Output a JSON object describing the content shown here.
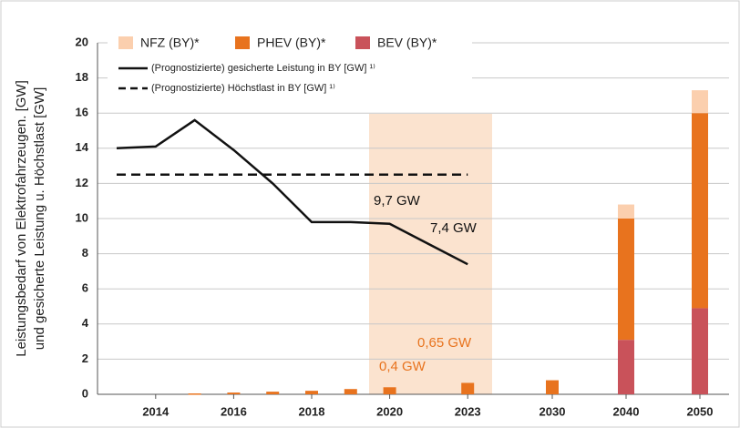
{
  "chart_data": {
    "type": "bar",
    "y_label": [
      "Leistungsbedarf von Elektrofahrzeugen. [GW]",
      "und gesicherte Leistung u. Höchstlast [GW]"
    ],
    "categories": [
      null,
      "2014",
      null,
      "2016",
      null,
      "2018",
      null,
      "2020",
      null,
      "2023",
      "2030",
      "2040",
      "2050"
    ],
    "series": [
      {
        "name": "BEV (BY)*",
        "type": "bar",
        "color": "#c9525a",
        "values": [
          null,
          null,
          null,
          null,
          null,
          null,
          null,
          null,
          null,
          null,
          null,
          3.1,
          4.9
        ]
      },
      {
        "name": "PHEV (BY)*",
        "type": "bar",
        "color": "#e8731e",
        "values": [
          null,
          null,
          0.05,
          0.1,
          0.15,
          0.2,
          0.3,
          0.4,
          null,
          0.65,
          0.8,
          6.9,
          11.1
        ]
      },
      {
        "name": "NFZ (BY)*",
        "type": "bar",
        "color": "#fbcfae",
        "values": [
          null,
          null,
          null,
          null,
          null,
          null,
          null,
          null,
          null,
          null,
          null,
          0.8,
          1.3
        ]
      },
      {
        "name": "(Prognostizierte) gesicherte Leistung in BY [GW] ¹⁾",
        "type": "line",
        "dashed": false,
        "color": "#111111",
        "values": [
          14.0,
          14.1,
          15.6,
          13.9,
          12.0,
          9.8,
          9.8,
          9.7,
          8.55,
          7.4,
          null,
          null,
          null
        ]
      },
      {
        "name": "(Prognostizierte) Höchstlast in BY [GW] ¹⁾",
        "type": "line",
        "dashed": true,
        "color": "#111111",
        "values": [
          12.5,
          12.5,
          12.5,
          12.5,
          12.5,
          12.5,
          12.5,
          12.5,
          12.5,
          12.5,
          null,
          null,
          null
        ]
      }
    ],
    "annotations": [
      {
        "text": "9,7 GW",
        "color": "#111111"
      },
      {
        "text": "7,4 GW",
        "color": "#111111"
      },
      {
        "text": "0,65 GW",
        "color": "#e8731e"
      },
      {
        "text": "0,4 GW",
        "color": "#e8731e"
      }
    ],
    "ylim": [
      0,
      20
    ],
    "yticks": [
      0,
      2,
      4,
      6,
      8,
      10,
      12,
      14,
      16,
      18,
      20
    ],
    "grid": true,
    "legend": "top"
  }
}
